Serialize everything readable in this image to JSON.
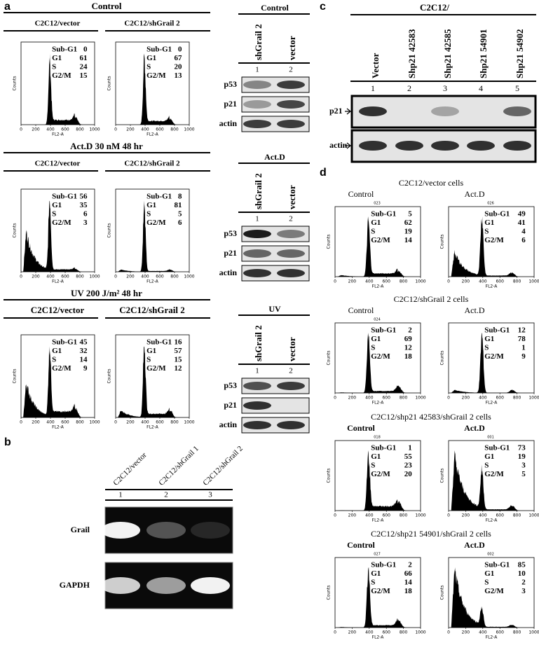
{
  "panel_a": {
    "label": "a",
    "groups": [
      {
        "title": "Control",
        "plots": [
          {
            "label": "C2C12/vector",
            "values": [
              0,
              61,
              24,
              15
            ]
          },
          {
            "label": "C2C12/shGrail 2",
            "values": [
              0,
              67,
              20,
              13
            ]
          }
        ],
        "blot": {
          "title": "Control",
          "lanes": [
            "shGrail 2",
            "vector"
          ],
          "lane_numbers": [
            "1",
            "2"
          ],
          "rows": [
            "p53",
            "p21",
            "actin"
          ]
        }
      },
      {
        "title": "Act.D 30 nM 48 hr",
        "plots": [
          {
            "label": "C2C12/vector",
            "values": [
              56,
              35,
              6,
              3
            ]
          },
          {
            "label": "C2C12/shGrail 2",
            "values": [
              8,
              81,
              5,
              6
            ]
          }
        ],
        "blot": {
          "title": "Act.D",
          "lanes": [
            "shGrail 2",
            "vector"
          ],
          "lane_numbers": [
            "1",
            "2"
          ],
          "rows": [
            "p53",
            "p21",
            "actin"
          ]
        }
      },
      {
        "title": "UV  200 J/m² 48 hr",
        "plots": [
          {
            "label": "C2C12/vector",
            "values": [
              45,
              32,
              14,
              9
            ]
          },
          {
            "label": "C2C12/shGrail 2",
            "values": [
              16,
              57,
              15,
              12
            ]
          }
        ],
        "blot": {
          "title": "UV",
          "lanes": [
            "shGrail 2",
            "vector"
          ],
          "lane_numbers": [
            "1",
            "2"
          ],
          "rows": [
            "p53",
            "p21",
            "actin"
          ]
        }
      }
    ]
  },
  "stat_names": [
    "Sub-G1",
    "G1",
    "S",
    "G2/M"
  ],
  "histogram_axis": {
    "xticks": [
      0,
      200,
      400,
      600,
      800,
      1000
    ],
    "xlabel": "FL2-A",
    "ylabel": "Counts"
  },
  "panel_b": {
    "label": "b",
    "lanes": [
      "C2C12/vector",
      "C2C12/shGrail 1",
      "C2C12/shGrail 2"
    ],
    "lane_numbers": [
      "1",
      "2",
      "3"
    ],
    "rows": [
      "Grail",
      "GAPDH"
    ]
  },
  "panel_c": {
    "label": "c",
    "title": "C2C12/",
    "lanes": [
      "Vector",
      "Shp21 42583",
      "Shp21 42585",
      "Shp21 54901",
      "Shp21 54902"
    ],
    "lane_numbers": [
      "1",
      "2",
      "3",
      "4",
      "5"
    ],
    "rows": [
      "p21",
      "actin"
    ]
  },
  "panel_d": {
    "label": "d",
    "groups": [
      {
        "title": "C2C12/vector cells",
        "plots": [
          {
            "label": "Control",
            "id": "023",
            "values": [
              5,
              62,
              19,
              14
            ]
          },
          {
            "label": "Act.D",
            "id": "026",
            "values": [
              49,
              41,
              4,
              6
            ]
          }
        ]
      },
      {
        "title": "C2C12/shGrail 2 cells",
        "plots": [
          {
            "label": "Control",
            "id": "024",
            "values": [
              2,
              69,
              12,
              18
            ]
          },
          {
            "label": "Act.D",
            "values": [
              12,
              78,
              1,
              9
            ]
          }
        ]
      },
      {
        "title": "C2C12/shp21 42583/shGrail 2 cells",
        "plots": [
          {
            "label": "Control",
            "id": "018",
            "values": [
              1,
              55,
              23,
              20
            ]
          },
          {
            "label": "Act.D",
            "id": "001",
            "values": [
              73,
              19,
              3,
              5
            ]
          }
        ]
      },
      {
        "title": "C2C12/shp21 54901/shGrail 2 cells",
        "plots": [
          {
            "label": "Control",
            "id": "027",
            "values": [
              2,
              66,
              14,
              18
            ]
          },
          {
            "label": "Act.D",
            "id": "002",
            "values": [
              85,
              10,
              2,
              3
            ]
          }
        ]
      }
    ]
  }
}
